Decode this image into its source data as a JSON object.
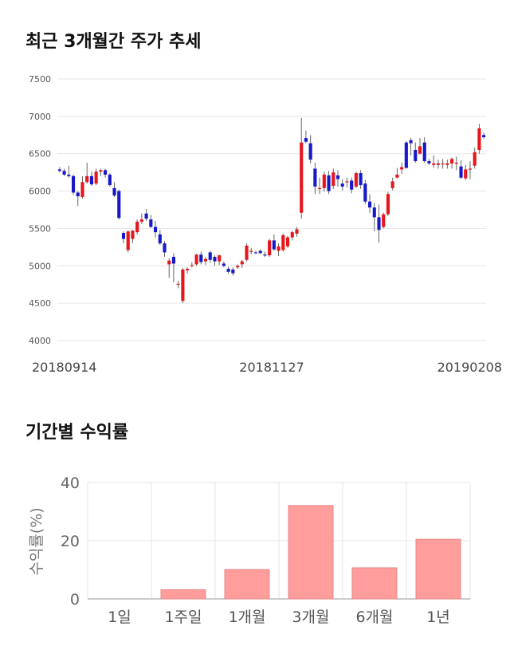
{
  "section1": {
    "title": "최근 3개월간 주가 추세"
  },
  "section2": {
    "title": "기간별 수익률"
  },
  "chart_data": [
    {
      "type": "candlestick",
      "ylim": [
        4000,
        7500
      ],
      "y_ticks": [
        "7500",
        "7000",
        "6500",
        "6000",
        "5500",
        "5000",
        "4500",
        "4000"
      ],
      "x_labels": [
        "20180914",
        "20181127",
        "20190208"
      ],
      "grid": true,
      "colors": {
        "up": "#e8161b",
        "down": "#1619c9",
        "wick": "#666666"
      },
      "candles": [
        [
          6290,
          6320,
          6250,
          6270
        ],
        [
          6270,
          6300,
          6200,
          6220
        ],
        [
          6220,
          6340,
          6180,
          6200
        ],
        [
          6200,
          6220,
          5950,
          5980
        ],
        [
          5980,
          6000,
          5800,
          5930
        ],
        [
          5920,
          6200,
          5900,
          6120
        ],
        [
          6120,
          6380,
          6100,
          6200
        ],
        [
          6200,
          6260,
          6070,
          6090
        ],
        [
          6100,
          6300,
          6080,
          6260
        ],
        [
          6260,
          6300,
          6200,
          6280
        ],
        [
          6280,
          6300,
          6180,
          6220
        ],
        [
          6220,
          6240,
          6060,
          6080
        ],
        [
          6040,
          6120,
          5920,
          5940
        ],
        [
          6000,
          6020,
          5620,
          5640
        ],
        [
          5440,
          5460,
          5300,
          5360
        ],
        [
          5210,
          5470,
          5180,
          5460
        ],
        [
          5360,
          5480,
          5300,
          5470
        ],
        [
          5450,
          5620,
          5420,
          5590
        ],
        [
          5590,
          5700,
          5560,
          5620
        ],
        [
          5700,
          5760,
          5600,
          5630
        ],
        [
          5620,
          5680,
          5510,
          5520
        ],
        [
          5520,
          5600,
          5380,
          5450
        ],
        [
          5420,
          5480,
          5280,
          5300
        ],
        [
          5300,
          5330,
          5120,
          5180
        ],
        [
          5020,
          5100,
          4840,
          5070
        ],
        [
          5120,
          5170,
          4780,
          5030
        ],
        [
          4760,
          4800,
          4700,
          4760
        ],
        [
          4530,
          4970,
          4500,
          4950
        ],
        [
          4940,
          4980,
          4900,
          4960
        ],
        [
          5000,
          5050,
          4980,
          5010
        ],
        [
          5020,
          5160,
          5000,
          5150
        ],
        [
          5150,
          5190,
          5020,
          5050
        ],
        [
          5060,
          5120,
          5010,
          5090
        ],
        [
          5180,
          5200,
          5040,
          5080
        ],
        [
          5120,
          5140,
          5000,
          5060
        ],
        [
          5060,
          5150,
          5010,
          5140
        ],
        [
          5030,
          5060,
          4980,
          5000
        ],
        [
          4960,
          4990,
          4890,
          4920
        ],
        [
          4950,
          4980,
          4870,
          4900
        ],
        [
          4980,
          5020,
          4960,
          5000
        ],
        [
          5020,
          5080,
          4970,
          5060
        ],
        [
          5080,
          5300,
          5060,
          5270
        ],
        [
          5190,
          5240,
          5150,
          5200
        ],
        [
          5180,
          5200,
          5160,
          5170
        ],
        [
          5200,
          5220,
          5160,
          5170
        ],
        [
          5150,
          5190,
          5120,
          5140
        ],
        [
          5140,
          5360,
          5120,
          5340
        ],
        [
          5340,
          5420,
          5200,
          5220
        ],
        [
          5200,
          5300,
          5130,
          5260
        ],
        [
          5210,
          5430,
          5190,
          5410
        ],
        [
          5260,
          5400,
          5240,
          5380
        ],
        [
          5380,
          5470,
          5340,
          5450
        ],
        [
          5430,
          5520,
          5390,
          5490
        ],
        [
          5710,
          6980,
          5630,
          6650
        ],
        [
          6710,
          6810,
          6640,
          6660
        ],
        [
          6640,
          6750,
          6370,
          6420
        ],
        [
          6300,
          6380,
          5960,
          6060
        ],
        [
          6040,
          6180,
          5960,
          6040
        ],
        [
          6040,
          6260,
          5990,
          6220
        ],
        [
          6210,
          6270,
          5960,
          6000
        ],
        [
          6070,
          6300,
          6030,
          6250
        ],
        [
          6210,
          6280,
          6060,
          6160
        ],
        [
          6100,
          6160,
          6010,
          6060
        ],
        [
          6120,
          6180,
          6050,
          6130
        ],
        [
          6140,
          6180,
          5970,
          6020
        ],
        [
          6060,
          6260,
          6040,
          6240
        ],
        [
          6240,
          6280,
          6030,
          6080
        ],
        [
          6100,
          6150,
          5830,
          5860
        ],
        [
          5860,
          5960,
          5710,
          5780
        ],
        [
          5780,
          5840,
          5460,
          5650
        ],
        [
          5650,
          5820,
          5310,
          5480
        ],
        [
          5520,
          5710,
          5500,
          5690
        ],
        [
          5690,
          5990,
          5670,
          5960
        ],
        [
          6040,
          6180,
          6010,
          6130
        ],
        [
          6180,
          6310,
          6170,
          6220
        ],
        [
          6290,
          6380,
          6230,
          6320
        ],
        [
          6650,
          6670,
          6300,
          6310
        ],
        [
          6680,
          6710,
          6480,
          6640
        ],
        [
          6550,
          6650,
          6380,
          6400
        ],
        [
          6500,
          6710,
          6490,
          6600
        ],
        [
          6650,
          6720,
          6380,
          6400
        ],
        [
          6400,
          6430,
          6350,
          6370
        ],
        [
          6350,
          6480,
          6310,
          6370
        ],
        [
          6350,
          6420,
          6300,
          6370
        ],
        [
          6370,
          6430,
          6300,
          6370
        ],
        [
          6350,
          6420,
          6300,
          6370
        ],
        [
          6370,
          6450,
          6300,
          6430
        ],
        [
          6380,
          6460,
          6280,
          6380
        ],
        [
          6330,
          6410,
          6160,
          6180
        ],
        [
          6170,
          6350,
          6150,
          6290
        ],
        [
          6290,
          6400,
          6160,
          6300
        ],
        [
          6340,
          6580,
          6300,
          6520
        ],
        [
          6550,
          6900,
          6500,
          6840
        ],
        [
          6750,
          6780,
          6700,
          6720
        ]
      ]
    },
    {
      "type": "bar",
      "ylabel": "수익률(%)",
      "ylim": [
        0,
        40
      ],
      "y_ticks": [
        "40",
        "20",
        "0"
      ],
      "categories": [
        "1일",
        "1주일",
        "1개월",
        "3개월",
        "6개월",
        "1년"
      ],
      "values": [
        0,
        3.2,
        10.1,
        32.1,
        10.7,
        20.5
      ],
      "bar_color": "#ff9c9c",
      "grid": true
    }
  ]
}
